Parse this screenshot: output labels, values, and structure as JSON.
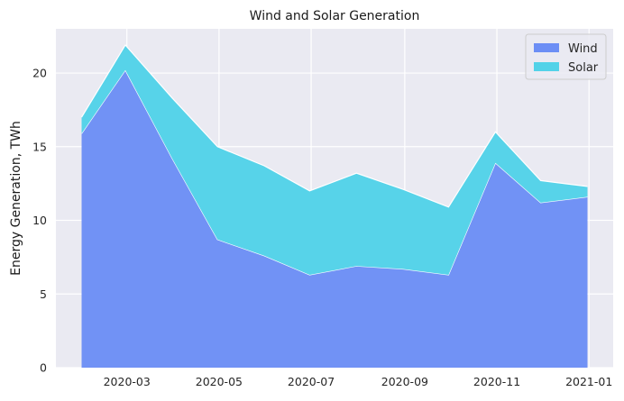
{
  "chart_data": {
    "type": "area",
    "stacked": true,
    "title": "Wind and Solar Generation",
    "xlabel": "",
    "ylabel": "Energy Generation, TWh",
    "x": [
      "2020-01-31",
      "2020-02-29",
      "2020-03-31",
      "2020-04-30",
      "2020-05-31",
      "2020-06-30",
      "2020-07-31",
      "2020-08-31",
      "2020-09-30",
      "2020-10-31",
      "2020-11-30",
      "2020-12-31"
    ],
    "series": [
      {
        "name": "Wind",
        "color": "#6c8ef5",
        "values": [
          15.9,
          20.2,
          14.2,
          8.7,
          7.6,
          6.3,
          6.9,
          6.7,
          6.3,
          13.9,
          11.2,
          11.6
        ]
      },
      {
        "name": "Solar",
        "color": "#52d2e8",
        "values": [
          1.1,
          1.7,
          4.1,
          6.3,
          6.1,
          5.7,
          6.3,
          5.4,
          4.6,
          2.1,
          1.5,
          0.7
        ]
      }
    ],
    "xticks": [
      "2020-03",
      "2020-05",
      "2020-07",
      "2020-09",
      "2020-11",
      "2021-01"
    ],
    "yticks": [
      0,
      5,
      10,
      15,
      20
    ],
    "xlim": [
      "2020-01-14",
      "2021-01-17"
    ],
    "ylim": [
      0,
      23
    ],
    "grid": true,
    "legend": "top-right",
    "background": "#eaeaf2"
  }
}
